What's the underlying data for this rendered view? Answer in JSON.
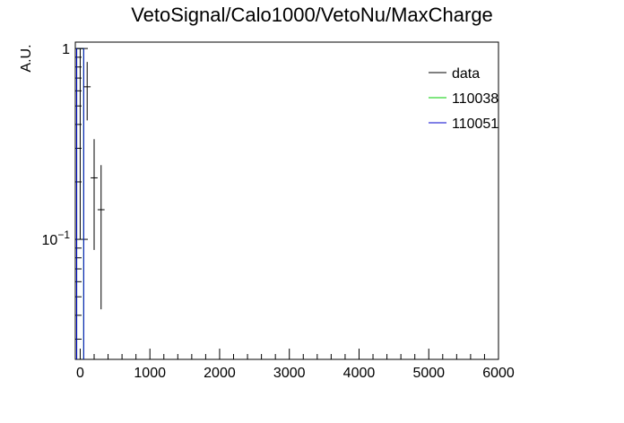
{
  "chart_data": {
    "type": "line",
    "title": "VetoSignal/Calo1000/VetoNu/MaxCharge",
    "xlabel": "",
    "ylabel": "A.U.",
    "xlim": [
      -70,
      6000
    ],
    "ylim": [
      0.0235,
      1.08
    ],
    "yscale": "log",
    "grid": false,
    "legend_position": "top-right",
    "x_ticks": [
      "0",
      "1000",
      "2000",
      "3000",
      "4000",
      "5000",
      "6000"
    ],
    "y_ticks": [
      {
        "base": "10",
        "exp": "−1",
        "value": 0.1
      },
      {
        "base": "1",
        "exp": "",
        "value": 1
      }
    ],
    "series": [
      {
        "name": "data",
        "color": "#000000",
        "style": "errorbars",
        "points": [
          {
            "x": 0,
            "y": 1.0,
            "xerr": 50,
            "ylo": 0.1,
            "yhi": 1.0
          },
          {
            "x": 100,
            "y": 0.63,
            "xerr": 50,
            "ylo": 0.42,
            "yhi": 0.85
          },
          {
            "x": 200,
            "y": 0.21,
            "xerr": 50,
            "ylo": 0.088,
            "yhi": 0.335
          },
          {
            "x": 300,
            "y": 0.143,
            "xerr": 50,
            "ylo": 0.043,
            "yhi": 0.245
          }
        ]
      },
      {
        "name": "110038",
        "color": "#00cc00",
        "style": "histogram",
        "bins": [
          {
            "x0": -50,
            "x1": 50,
            "y": 1.0
          }
        ]
      },
      {
        "name": "110051",
        "color": "#0000cc",
        "style": "histogram",
        "bins": [
          {
            "x0": -50,
            "x1": 50,
            "y": 1.0
          }
        ]
      }
    ]
  }
}
